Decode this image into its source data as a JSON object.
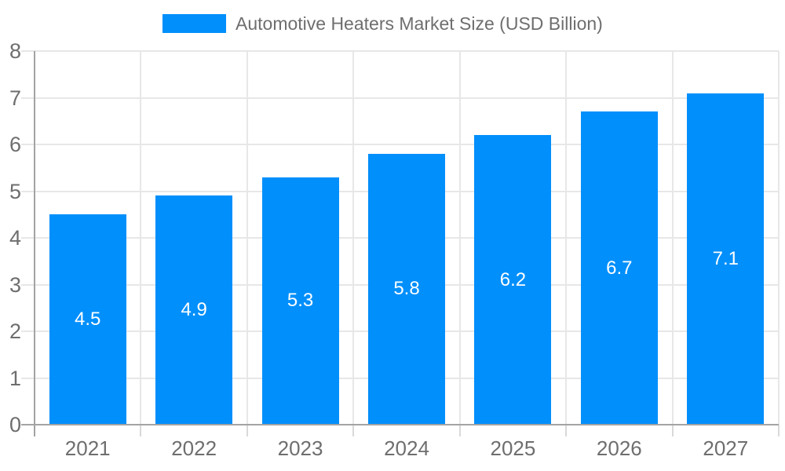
{
  "chart_data": {
    "type": "bar",
    "title": "Automotive Heaters Market Size (USD Billion)",
    "legend_label": "Automotive Heaters Market Size (USD Billion)",
    "legend_position": "top",
    "categories": [
      "2021",
      "2022",
      "2023",
      "2024",
      "2025",
      "2026",
      "2027"
    ],
    "values": [
      4.5,
      4.9,
      5.3,
      5.8,
      6.2,
      6.7,
      7.1
    ],
    "value_labels": [
      "4.5",
      "4.9",
      "5.3",
      "5.8",
      "6.2",
      "6.7",
      "7.1"
    ],
    "xlabel": "",
    "ylabel": "",
    "ylim": [
      0,
      8
    ],
    "y_ticks": [
      0,
      1,
      2,
      3,
      4,
      5,
      6,
      7,
      8
    ],
    "y_tick_labels": [
      "0",
      "1",
      "2",
      "3",
      "4",
      "5",
      "6",
      "7",
      "8"
    ],
    "grid": true,
    "colors": {
      "bar": "#008FFB",
      "value_label": "#ffffff",
      "axis_line": "#a3a3a3",
      "gridline": "#e7e7e7",
      "boundary_tick": "#d9d9d9",
      "axis_label": "#6e6e6e",
      "legend_text": "#6e6e6e",
      "background": "#ffffff"
    }
  }
}
